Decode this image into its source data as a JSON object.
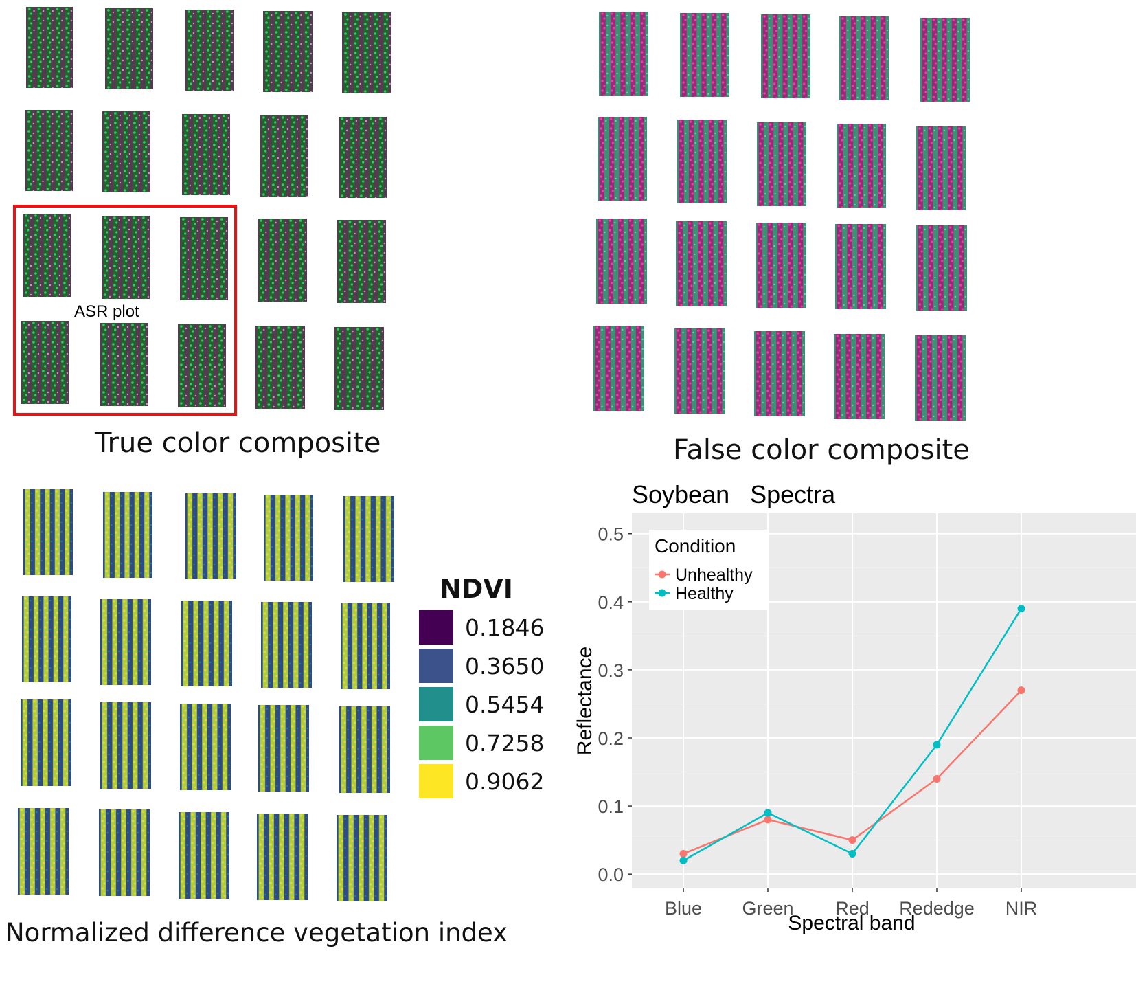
{
  "panels": {
    "true_color": {
      "caption": "True color composite",
      "highlight_label": "ASR plot",
      "highlight_color": "#ee1111"
    },
    "false_color": {
      "caption": "False color composite"
    },
    "ndvi": {
      "caption": "Normalized difference vegetation index",
      "legend": {
        "title": "NDVI",
        "entries": [
          {
            "label": "0.1846",
            "color": "#440154"
          },
          {
            "label": "0.3650",
            "color": "#3b528b"
          },
          {
            "label": "0.5454",
            "color": "#21908c"
          },
          {
            "label": "0.7258",
            "color": "#5dc863"
          },
          {
            "label": "0.9062",
            "color": "#fde725"
          }
        ]
      }
    }
  },
  "chart_data": {
    "type": "line",
    "title": "Soybean   Spectra",
    "xlabel": "Spectral band",
    "ylabel": "Reflectance",
    "categories": [
      "Blue",
      "Green",
      "Red",
      "Rededge",
      "NIR"
    ],
    "ylim": [
      -0.02,
      0.53
    ],
    "yticks": [
      "0.0",
      "0.1",
      "0.2",
      "0.3",
      "0.4",
      "0.5"
    ],
    "grid": true,
    "legend": {
      "title": "Condition",
      "position": "top-left"
    },
    "series": [
      {
        "name": "Unhealthy",
        "color": "#f8766d",
        "values": [
          0.03,
          0.08,
          0.05,
          0.14,
          0.27
        ]
      },
      {
        "name": "Healthy",
        "color": "#00bfc4",
        "values": [
          0.02,
          0.09,
          0.03,
          0.19,
          0.39
        ]
      }
    ]
  }
}
